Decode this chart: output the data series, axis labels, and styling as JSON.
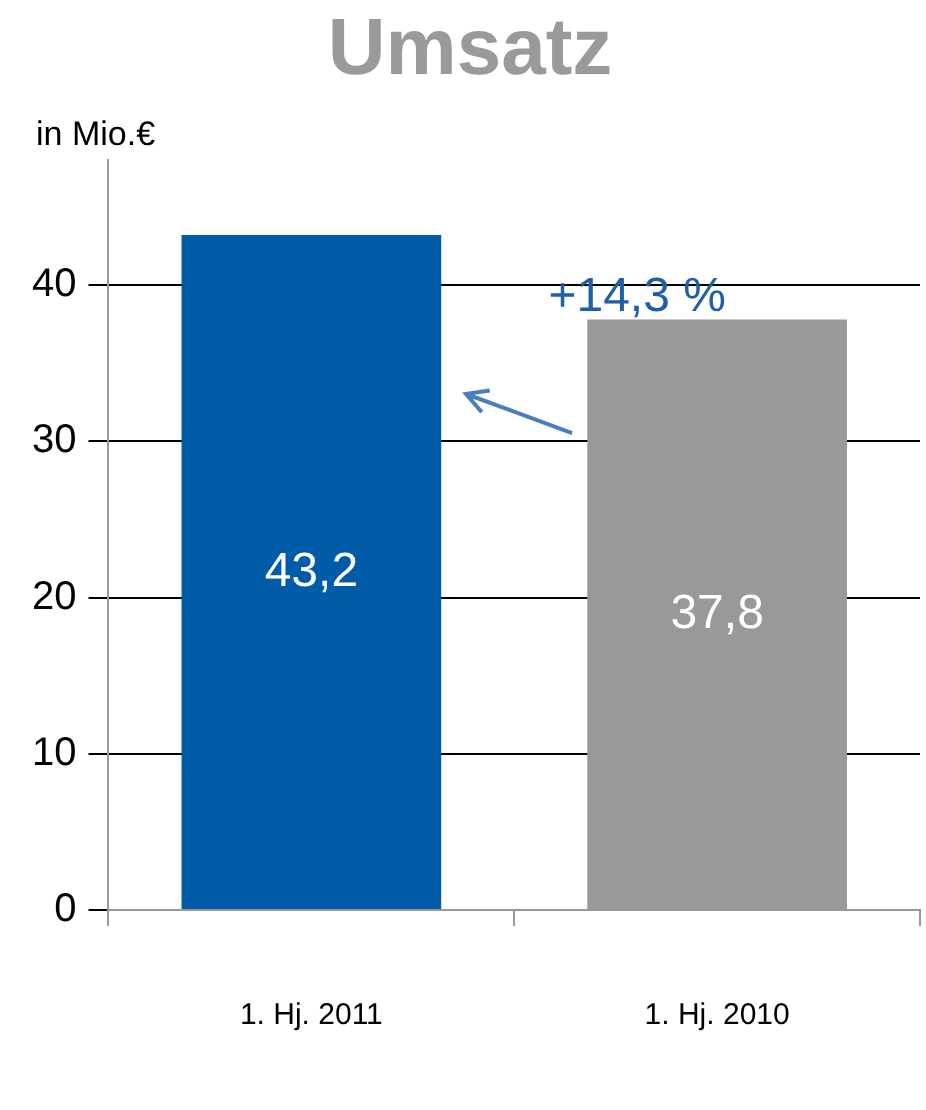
{
  "chart_data": {
    "type": "bar",
    "title": "Umsatz",
    "ylabel": "in Mio.€",
    "categories": [
      "1. Hj. 2011",
      "1. Hj. 2010"
    ],
    "values": [
      43.2,
      37.8
    ],
    "colors": [
      "#005ca9",
      "#999999"
    ],
    "ylim": [
      0,
      48
    ],
    "yticks": [
      0,
      10,
      20,
      30,
      40
    ],
    "grid": "y",
    "legend": false,
    "data_labels": true,
    "value_labels": [
      "43,2",
      "37,8"
    ],
    "annotations": [
      "+14,3 %"
    ]
  }
}
